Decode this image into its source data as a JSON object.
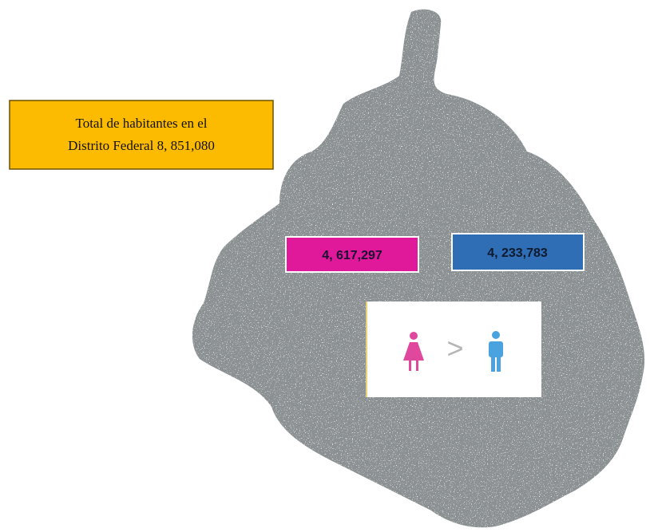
{
  "total": {
    "lines": [
      "Total de habitantes en el",
      "Distrito Federal 8, 851,080"
    ]
  },
  "women": {
    "value": "4, 617,297"
  },
  "men": {
    "value": "4, 233,783"
  },
  "comparison": {
    "symbol": ">"
  }
}
